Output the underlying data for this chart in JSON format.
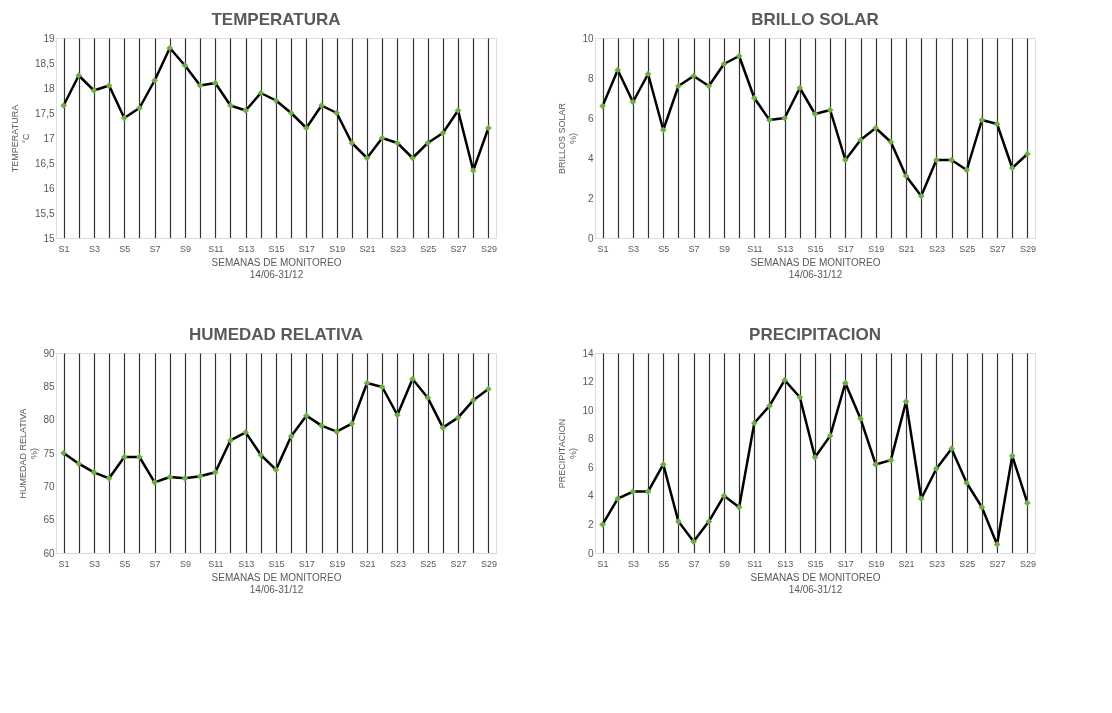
{
  "chart_data": [
    {
      "type": "line",
      "title": "TEMPERATURA",
      "xlabel": "SEMANAS DE MONITOREO\n14/06-31/12",
      "ylabel": "TEMPERATURA\n°C",
      "categories": [
        "S1",
        null,
        "S3",
        null,
        "S5",
        null,
        "S7",
        null,
        "S9",
        null,
        "S11",
        null,
        "S13",
        null,
        "S15",
        null,
        "S17",
        null,
        "S19",
        null,
        "S21",
        null,
        "S23",
        null,
        "S25",
        null,
        "S27",
        null,
        "S29"
      ],
      "series": [
        {
          "color": "#000000",
          "colors": [
            "#70ad47",
            "#70ad47",
            "#70ad47",
            "#70ad47",
            "#70ad47",
            "#70ad47",
            "#70ad47",
            "#70ad47",
            "#70ad47",
            "#70ad47",
            "#70ad47",
            "#70ad47",
            "#70ad47",
            "#70ad47",
            "#70ad47",
            "#70ad47",
            "#70ad47",
            "#70ad47",
            "#70ad47",
            "#70ad47",
            "#70ad47",
            "#70ad47",
            "#70ad47",
            "#70ad47",
            "#70ad47",
            "#70ad47",
            "#70ad47",
            "#70ad47",
            "#70ad47"
          ],
          "values": [
            17.65,
            18.25,
            17.95,
            18.05,
            17.4,
            17.6,
            18.15,
            18.8,
            18.45,
            18.05,
            18.1,
            17.65,
            17.55,
            17.9,
            17.75,
            17.5,
            17.2,
            17.65,
            17.5,
            16.9,
            16.6,
            17.0,
            16.9,
            16.6,
            16.9,
            17.1,
            17.55,
            16.35,
            17.2
          ]
        }
      ],
      "ylim": [
        15,
        19
      ],
      "yticks": [
        15,
        {
          "value": 15.5,
          "label": "15,5"
        },
        16,
        {
          "value": 16.5,
          "label": "16,5"
        },
        17,
        {
          "value": 17.5,
          "label": "17,5"
        },
        18,
        {
          "value": 18.5,
          "label": "18,5"
        },
        19
      ],
      "grid": "x",
      "marker": "diamond",
      "line_style": "solid"
    },
    {
      "type": "line",
      "title": "BRILLO SOLAR",
      "xlabel": "SEMANAS DE MONITOREO\n14/06-31/12",
      "ylabel": "BRILLOS SOLAR\n%)",
      "categories": [
        "S1",
        null,
        "S3",
        null,
        "S5",
        null,
        "S7",
        null,
        "S9",
        null,
        "S11",
        null,
        "S13",
        null,
        "S15",
        null,
        "S17",
        null,
        "S19",
        null,
        "S21",
        null,
        "S23",
        null,
        "S25",
        null,
        "S27",
        null,
        "S29"
      ],
      "series": [
        {
          "color": "#000000",
          "colors": [
            "#70ad47",
            "#70ad47",
            "#70ad47",
            "#70ad47",
            "#70ad47",
            "#70ad47",
            "#70ad47",
            "#70ad47",
            "#70ad47",
            "#70ad47",
            "#70ad47",
            "#70ad47",
            "#70ad47",
            "#70ad47",
            "#70ad47",
            "#70ad47",
            "#70ad47",
            "#70ad47",
            "#70ad47",
            "#70ad47",
            "#70ad47",
            "#70ad47",
            "#70ad47",
            "#70ad47",
            "#70ad47",
            "#70ad47",
            "#70ad47",
            "#70ad47",
            "#70ad47"
          ],
          "values": [
            6.6,
            8.4,
            6.8,
            8.2,
            5.4,
            7.6,
            8.1,
            7.6,
            8.7,
            9.1,
            7.0,
            5.9,
            6.0,
            7.5,
            6.2,
            6.4,
            3.9,
            4.9,
            5.5,
            4.8,
            3.1,
            2.1,
            3.9,
            3.9,
            3.4,
            5.9,
            5.7,
            3.5,
            4.2
          ]
        }
      ],
      "ylim": [
        0,
        10
      ],
      "yticks": [
        0,
        2,
        4,
        6,
        8,
        10
      ],
      "grid": "x",
      "marker": "diamond",
      "line_style": "solid"
    },
    {
      "type": "line",
      "title": "HUMEDAD RELATIVA",
      "xlabel": "SEMANAS DE MONITOREO\n14/06-31/12",
      "ylabel": "HUMEDAD RELATIVA\n%)",
      "categories": [
        "S1",
        null,
        "S3",
        null,
        "S5",
        null,
        "S7",
        null,
        "S9",
        null,
        "S11",
        null,
        "S13",
        null,
        "S15",
        null,
        "S17",
        null,
        "S19",
        null,
        "S21",
        null,
        "S23",
        null,
        "S25",
        null,
        "S27",
        null,
        "S29"
      ],
      "series": [
        {
          "color": "#000000",
          "colors": [
            "#70ad47",
            "#70ad47",
            "#70ad47",
            "#70ad47",
            "#70ad47",
            "#70ad47",
            "#70ad47",
            "#70ad47",
            "#70ad47",
            "#70ad47",
            "#70ad47",
            "#70ad47",
            "#70ad47",
            "#70ad47",
            "#70ad47",
            "#70ad47",
            "#70ad47",
            "#70ad47",
            "#70ad47",
            "#70ad47",
            "#70ad47",
            "#70ad47",
            "#70ad47",
            "#70ad47",
            "#70ad47",
            "#70ad47",
            "#70ad47",
            "#70ad47",
            "#70ad47"
          ],
          "values": [
            75.0,
            73.4,
            72.1,
            71.2,
            74.4,
            74.4,
            70.6,
            71.4,
            71.2,
            71.5,
            72.1,
            76.9,
            78.1,
            74.7,
            72.5,
            77.5,
            80.6,
            79.1,
            78.2,
            79.4,
            85.5,
            84.9,
            80.7,
            86.1,
            83.3,
            78.8,
            80.3,
            82.9,
            84.6
          ]
        }
      ],
      "ylim": [
        60,
        90
      ],
      "yticks": [
        60,
        65,
        70,
        75,
        80,
        85,
        90
      ],
      "grid": "x",
      "marker": "diamond",
      "line_style": "solid"
    },
    {
      "type": "line",
      "title": "PRECIPITACION",
      "xlabel": "SEMANAS DE MONITOREO\n14/06-31/12",
      "ylabel": "PRECIPITACION\n%)",
      "categories": [
        "S1",
        null,
        "S3",
        null,
        "S5",
        null,
        "S7",
        null,
        "S9",
        null,
        "S11",
        null,
        "S13",
        null,
        "S15",
        null,
        "S17",
        null,
        "S19",
        null,
        "S21",
        null,
        "S23",
        null,
        "S25",
        null,
        "S27",
        null,
        "S29"
      ],
      "series": [
        {
          "color": "#000000",
          "colors": [
            "#70ad47",
            "#70ad47",
            "#70ad47",
            "#70ad47",
            "#70ad47",
            "#70ad47",
            "#70ad47",
            "#70ad47",
            "#70ad47",
            "#70ad47",
            "#70ad47",
            "#70ad47",
            "#70ad47",
            "#70ad47",
            "#70ad47",
            "#70ad47",
            "#70ad47",
            "#70ad47",
            "#70ad47",
            "#70ad47",
            "#70ad47",
            "#70ad47",
            "#70ad47",
            "#70ad47",
            "#70ad47",
            "#70ad47",
            "#70ad47",
            "#70ad47",
            "#70ad47"
          ],
          "values": [
            2.0,
            3.8,
            4.3,
            4.3,
            6.2,
            2.2,
            0.8,
            2.2,
            4.0,
            3.2,
            9.1,
            10.3,
            12.1,
            10.9,
            6.7,
            8.2,
            11.9,
            9.4,
            6.2,
            6.5,
            10.6,
            3.8,
            5.9,
            7.3,
            4.9,
            3.2,
            0.6,
            6.8,
            3.5
          ]
        }
      ],
      "ylim": [
        0,
        14
      ],
      "yticks": [
        0,
        2,
        4,
        6,
        8,
        10,
        12,
        14
      ],
      "grid": "x",
      "marker": "diamond",
      "line_style": "solid"
    }
  ]
}
